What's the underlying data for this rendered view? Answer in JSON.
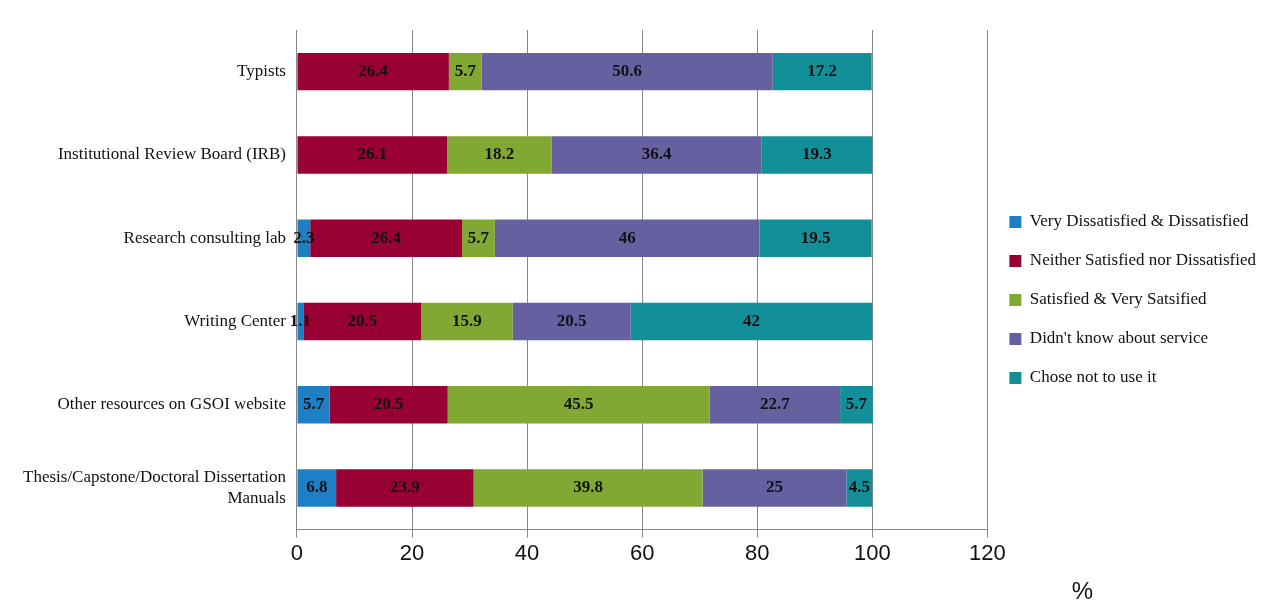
{
  "chart_data": {
    "type": "bar",
    "orientation": "horizontal",
    "stacked": true,
    "xlabel": "%",
    "categories": [
      "Typists",
      "Institutional Review Board (IRB)",
      "Research consulting lab",
      "Writing Center",
      "Other resources on GSOI website",
      "Thesis/Capstone/Doctoral Dissertation Manuals"
    ],
    "series": [
      {
        "name": "Very Dissatisfied & Dissatisfied",
        "color": "#1f7fc4",
        "values": [
          null,
          null,
          2.3,
          1.1,
          5.7,
          6.8
        ]
      },
      {
        "name": "Neither Satisfied nor Dissatisfied",
        "color": "#990033",
        "values": [
          26.4,
          26.1,
          26.4,
          20.5,
          20.5,
          23.9
        ]
      },
      {
        "name": "Satisfied & Very Satsified",
        "color": "#80a832",
        "values": [
          5.7,
          18.2,
          5.7,
          15.9,
          45.5,
          39.8
        ]
      },
      {
        "name": "Didn't know about service",
        "color": "#6660a0",
        "values": [
          50.6,
          36.4,
          46,
          20.5,
          22.7,
          25
        ]
      },
      {
        "name": "Chose not to use it",
        "color": "#138f9a",
        "values": [
          17.2,
          19.3,
          19.5,
          42,
          5.7,
          4.5
        ]
      }
    ],
    "xlim": [
      0,
      120
    ],
    "xticks": [
      0,
      20,
      40,
      60,
      80,
      100,
      120
    ],
    "grid": "x",
    "legend": "right",
    "data_labels": true
  }
}
